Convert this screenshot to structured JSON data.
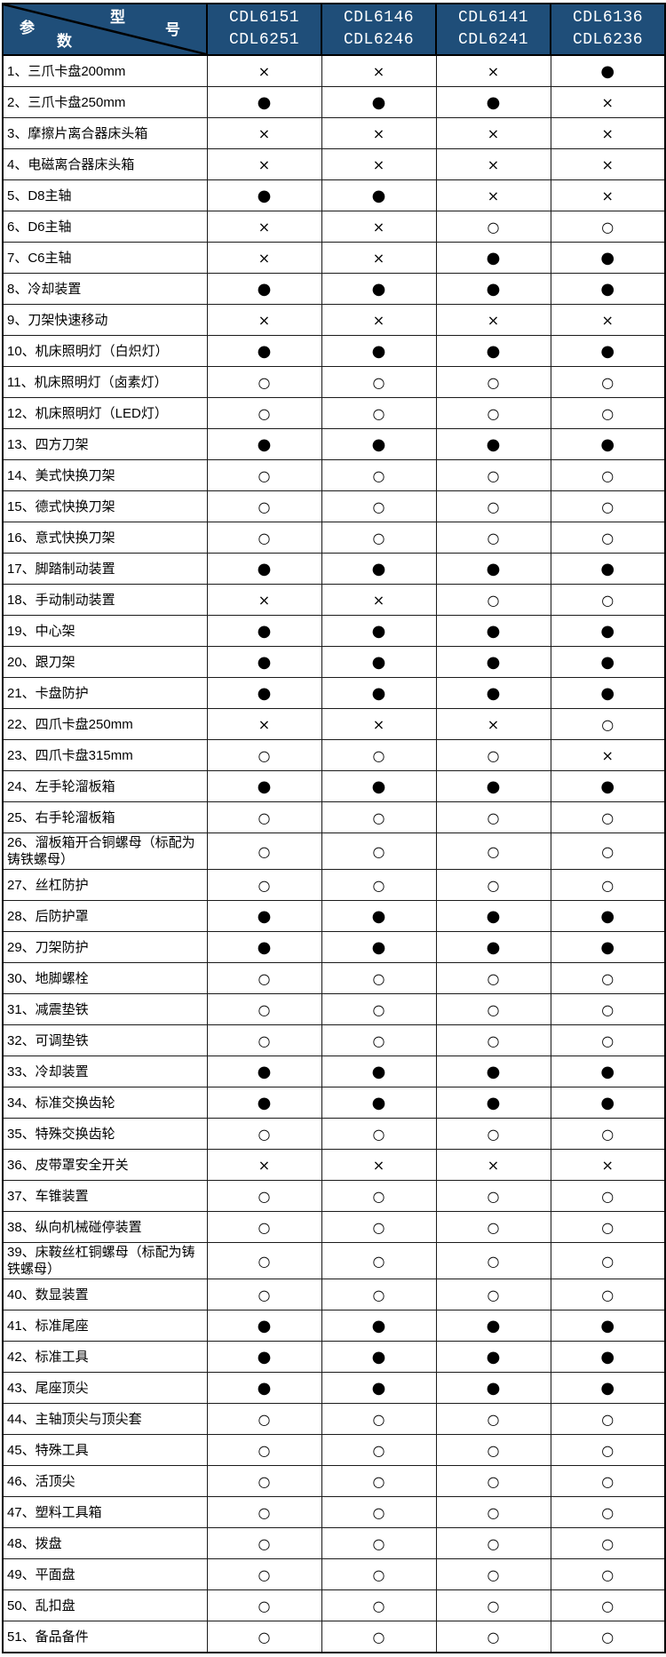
{
  "colors": {
    "header_bg": "#1F4E79",
    "header_text": "#FFFFFF",
    "grid": "#000000",
    "row_bg": "#FFFFFF"
  },
  "header": {
    "corner": {
      "model_chars": [
        "型",
        "号"
      ],
      "param_chars": [
        "参",
        "数"
      ]
    },
    "models": [
      {
        "line1": "CDL6151",
        "line2": "CDL6251"
      },
      {
        "line1": "CDL6146",
        "line2": "CDL6246"
      },
      {
        "line1": "CDL6141",
        "line2": "CDL6241"
      },
      {
        "line1": "CDL6136",
        "line2": "CDL6236"
      }
    ]
  },
  "symbols": {
    "standard": "●",
    "optional": "○",
    "none": "×"
  },
  "table": {
    "rows": [
      {
        "label": "1、三爪卡盘200mm",
        "values": [
          "×",
          "×",
          "×",
          "●"
        ]
      },
      {
        "label": "2、三爪卡盘250mm",
        "values": [
          "●",
          "●",
          "●",
          "×"
        ]
      },
      {
        "label": "3、摩擦片离合器床头箱",
        "values": [
          "×",
          "×",
          "×",
          "×"
        ]
      },
      {
        "label": "4、电磁离合器床头箱",
        "values": [
          "×",
          "×",
          "×",
          "×"
        ]
      },
      {
        "label": "5、D8主轴",
        "values": [
          "●",
          "●",
          "×",
          "×"
        ]
      },
      {
        "label": "6、D6主轴",
        "values": [
          "×",
          "×",
          "○",
          "○"
        ]
      },
      {
        "label": "7、C6主轴",
        "values": [
          "×",
          "×",
          "●",
          "●"
        ]
      },
      {
        "label": "8、冷却装置",
        "values": [
          "●",
          "●",
          "●",
          "●"
        ]
      },
      {
        "label": "9、刀架快速移动",
        "values": [
          "×",
          "×",
          "×",
          "×"
        ]
      },
      {
        "label": "10、机床照明灯（白炽灯）",
        "values": [
          "●",
          "●",
          "●",
          "●"
        ]
      },
      {
        "label": "11、机床照明灯（卤素灯）",
        "values": [
          "○",
          "○",
          "○",
          "○"
        ]
      },
      {
        "label": "12、机床照明灯（LED灯）",
        "values": [
          "○",
          "○",
          "○",
          "○"
        ]
      },
      {
        "label": "13、四方刀架",
        "values": [
          "●",
          "●",
          "●",
          "●"
        ]
      },
      {
        "label": "14、美式快换刀架",
        "values": [
          "○",
          "○",
          "○",
          "○"
        ]
      },
      {
        "label": "15、德式快换刀架",
        "values": [
          "○",
          "○",
          "○",
          "○"
        ]
      },
      {
        "label": "16、意式快换刀架",
        "values": [
          "○",
          "○",
          "○",
          "○"
        ]
      },
      {
        "label": "17、脚踏制动装置",
        "values": [
          "●",
          "●",
          "●",
          "●"
        ]
      },
      {
        "label": "18、手动制动装置",
        "values": [
          "×",
          "×",
          "○",
          "○"
        ]
      },
      {
        "label": "19、中心架",
        "values": [
          "●",
          "●",
          "●",
          "●"
        ]
      },
      {
        "label": "20、跟刀架",
        "values": [
          "●",
          "●",
          "●",
          "●"
        ]
      },
      {
        "label": "21、卡盘防护",
        "values": [
          "●",
          "●",
          "●",
          "●"
        ]
      },
      {
        "label": "22、四爪卡盘250mm",
        "values": [
          "×",
          "×",
          "×",
          "○"
        ]
      },
      {
        "label": "23、四爪卡盘315mm",
        "values": [
          "○",
          "○",
          "○",
          "×"
        ]
      },
      {
        "label": "24、左手轮溜板箱",
        "values": [
          "●",
          "●",
          "●",
          "●"
        ]
      },
      {
        "label": "25、右手轮溜板箱",
        "values": [
          "○",
          "○",
          "○",
          "○"
        ]
      },
      {
        "label": "26、溜板箱开合铜螺母（标配为铸铁螺母）",
        "values": [
          "○",
          "○",
          "○",
          "○"
        ]
      },
      {
        "label": "27、丝杠防护",
        "values": [
          "○",
          "○",
          "○",
          "○"
        ]
      },
      {
        "label": "28、后防护罩",
        "values": [
          "●",
          "●",
          "●",
          "●"
        ]
      },
      {
        "label": "29、刀架防护",
        "values": [
          "●",
          "●",
          "●",
          "●"
        ]
      },
      {
        "label": "30、地脚螺栓",
        "values": [
          "○",
          "○",
          "○",
          "○"
        ]
      },
      {
        "label": "31、减震垫铁",
        "values": [
          "○",
          "○",
          "○",
          "○"
        ]
      },
      {
        "label": "32、可调垫铁",
        "values": [
          "○",
          "○",
          "○",
          "○"
        ]
      },
      {
        "label": "33、冷却装置",
        "values": [
          "●",
          "●",
          "●",
          "●"
        ]
      },
      {
        "label": "34、标准交换齿轮",
        "values": [
          "●",
          "●",
          "●",
          "●"
        ]
      },
      {
        "label": "35、特殊交换齿轮",
        "values": [
          "○",
          "○",
          "○",
          "○"
        ]
      },
      {
        "label": "36、皮带罩安全开关",
        "values": [
          "×",
          "×",
          "×",
          "×"
        ]
      },
      {
        "label": "37、车锥装置",
        "values": [
          "○",
          "○",
          "○",
          "○"
        ]
      },
      {
        "label": "38、纵向机械碰停装置",
        "values": [
          "○",
          "○",
          "○",
          "○"
        ]
      },
      {
        "label": "39、床鞍丝杠铜螺母（标配为铸铁螺母）",
        "values": [
          "○",
          "○",
          "○",
          "○"
        ]
      },
      {
        "label": "40、数显装置",
        "values": [
          "○",
          "○",
          "○",
          "○"
        ]
      },
      {
        "label": "41、标准尾座",
        "values": [
          "●",
          "●",
          "●",
          "●"
        ]
      },
      {
        "label": "42、标准工具",
        "values": [
          "●",
          "●",
          "●",
          "●"
        ]
      },
      {
        "label": "43、尾座顶尖",
        "values": [
          "●",
          "●",
          "●",
          "●"
        ]
      },
      {
        "label": "44、主轴顶尖与顶尖套",
        "values": [
          "○",
          "○",
          "○",
          "○"
        ]
      },
      {
        "label": "45、特殊工具",
        "values": [
          "○",
          "○",
          "○",
          "○"
        ]
      },
      {
        "label": "46、活顶尖",
        "values": [
          "○",
          "○",
          "○",
          "○"
        ]
      },
      {
        "label": "47、塑料工具箱",
        "values": [
          "○",
          "○",
          "○",
          "○"
        ]
      },
      {
        "label": "48、拨盘",
        "values": [
          "○",
          "○",
          "○",
          "○"
        ]
      },
      {
        "label": "49、平面盘",
        "values": [
          "○",
          "○",
          "○",
          "○"
        ]
      },
      {
        "label": "50、乱扣盘",
        "values": [
          "○",
          "○",
          "○",
          "○"
        ]
      },
      {
        "label": "51、备品备件",
        "values": [
          "○",
          "○",
          "○",
          "○"
        ]
      }
    ]
  }
}
